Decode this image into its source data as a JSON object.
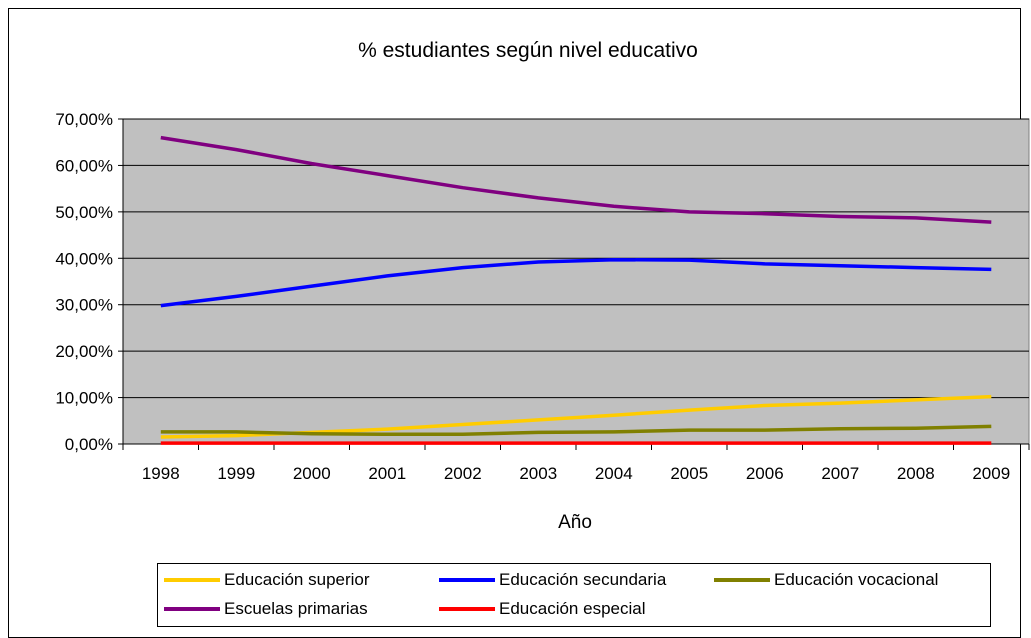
{
  "chart_data": {
    "type": "line",
    "title": "% estudiantes según nivel educativo",
    "xlabel": "Año",
    "ylabel": "",
    "categories": [
      "1998",
      "1999",
      "2000",
      "2001",
      "2002",
      "2003",
      "2004",
      "2005",
      "2006",
      "2007",
      "2008",
      "2009"
    ],
    "ylim": [
      0,
      0.7
    ],
    "yticks": [
      "0,00%",
      "10,00%",
      "20,00%",
      "30,00%",
      "40,00%",
      "50,00%",
      "60,00%",
      "70,00%"
    ],
    "grid": true,
    "plot_background": "#c0c0c0",
    "legend_position": "bottom",
    "series": [
      {
        "name": "Educación superior",
        "color": "#ffcc00",
        "values": [
          0.015,
          0.018,
          0.025,
          0.032,
          0.042,
          0.052,
          0.062,
          0.073,
          0.083,
          0.088,
          0.095,
          0.102
        ]
      },
      {
        "name": "Educación secundaria",
        "color": "#0000ff",
        "values": [
          0.298,
          0.318,
          0.34,
          0.362,
          0.38,
          0.392,
          0.397,
          0.396,
          0.388,
          0.384,
          0.38,
          0.376
        ]
      },
      {
        "name": "Educación vocacional",
        "color": "#808000",
        "values": [
          0.026,
          0.026,
          0.022,
          0.021,
          0.021,
          0.025,
          0.026,
          0.03,
          0.03,
          0.033,
          0.034,
          0.038
        ]
      },
      {
        "name": "Escuelas primarias",
        "color": "#800080",
        "values": [
          0.66,
          0.634,
          0.604,
          0.578,
          0.552,
          0.53,
          0.512,
          0.5,
          0.496,
          0.49,
          0.487,
          0.478
        ]
      },
      {
        "name": "Educación especial",
        "color": "#ff0000",
        "values": [
          0.002,
          0.002,
          0.002,
          0.002,
          0.002,
          0.002,
          0.002,
          0.002,
          0.002,
          0.002,
          0.002,
          0.002
        ]
      }
    ]
  }
}
